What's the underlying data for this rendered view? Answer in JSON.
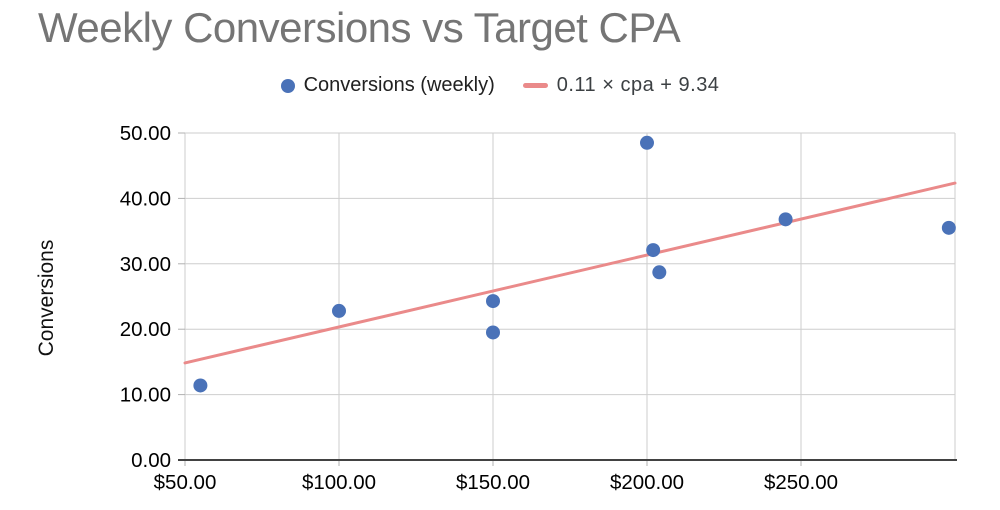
{
  "title": "Weekly Conversions vs Target CPA",
  "y_axis_title": "Conversions",
  "legend": {
    "series_label": "Conversions (weekly)",
    "trend_label": "0.11 × cpa + 9.34"
  },
  "colors": {
    "title_text": "#757575",
    "series_point": "#4a72b8",
    "trend_line": "#ea8a8a",
    "gridline": "#cecece",
    "axis_line": "#424242",
    "tick_mark": "#b0b0b0",
    "tick_text": "#000000",
    "legend_text": "#212121"
  },
  "chart_data": {
    "type": "scatter",
    "title": "Weekly Conversions vs Target CPA",
    "ylabel": "Conversions",
    "xlim": [
      50,
      300
    ],
    "ylim": [
      0,
      50
    ],
    "grid": true,
    "legend_position": "top",
    "x_tick_format": "currency",
    "x_ticks": [
      {
        "value": 50,
        "label": "$50.00"
      },
      {
        "value": 100,
        "label": "$100.00"
      },
      {
        "value": 150,
        "label": "$150.00"
      },
      {
        "value": 200,
        "label": "$200.00"
      },
      {
        "value": 250,
        "label": "$250.00"
      }
    ],
    "x_gridlines_extra": [
      300
    ],
    "y_ticks": [
      {
        "value": 0,
        "label": "0.00"
      },
      {
        "value": 10,
        "label": "10.00"
      },
      {
        "value": 20,
        "label": "20.00"
      },
      {
        "value": 30,
        "label": "30.00"
      },
      {
        "value": 40,
        "label": "40.00"
      },
      {
        "value": 50,
        "label": "50.00"
      }
    ],
    "series": [
      {
        "name": "Conversions (weekly)",
        "points": [
          {
            "cpa": 55,
            "conversions": 11.4
          },
          {
            "cpa": 100,
            "conversions": 22.8
          },
          {
            "cpa": 150,
            "conversions": 24.3
          },
          {
            "cpa": 150,
            "conversions": 19.5
          },
          {
            "cpa": 200,
            "conversions": 48.5
          },
          {
            "cpa": 202,
            "conversions": 32.1
          },
          {
            "cpa": 204,
            "conversions": 28.7
          },
          {
            "cpa": 245,
            "conversions": 36.8
          },
          {
            "cpa": 298,
            "conversions": 35.5
          }
        ]
      }
    ],
    "trendline": {
      "label": "0.11 × cpa + 9.34",
      "slope": 0.11,
      "intercept": 9.34,
      "x_domain": [
        50,
        300
      ]
    }
  }
}
